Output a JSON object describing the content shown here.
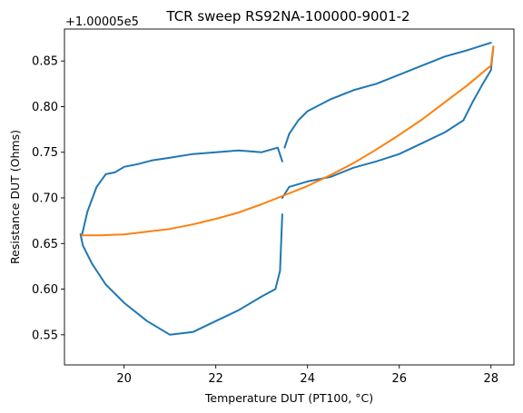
{
  "chart_data": {
    "type": "line",
    "title": "TCR sweep RS92NA-100000-9001-2",
    "xlabel": "Temperature DUT (PT100, °C)",
    "ylabel": "Resistance DUT (Ohms)",
    "y_offset_label": "+1.00005e5",
    "xlim": [
      18.7,
      28.5
    ],
    "ylim": [
      0.517,
      0.885
    ],
    "x_ticks": [
      20,
      22,
      24,
      26,
      28
    ],
    "y_ticks": [
      0.55,
      0.6,
      0.65,
      0.7,
      0.75,
      0.8,
      0.85
    ],
    "x_tick_labels": [
      "20",
      "22",
      "24",
      "26",
      "28"
    ],
    "y_tick_labels": [
      "0.55",
      "0.60",
      "0.65",
      "0.70",
      "0.75",
      "0.80",
      "0.85"
    ],
    "grid": false,
    "series": [
      {
        "color": "#1f77b4",
        "segments": [
          {
            "x": [
              19.08,
              19.2,
              19.4,
              19.6,
              19.8,
              20.0,
              20.3,
              20.6,
              21.0,
              21.5,
              22.0,
              22.5,
              23.0,
              23.35,
              23.45
            ],
            "y": [
              0.659,
              0.685,
              0.712,
              0.726,
              0.728,
              0.734,
              0.737,
              0.741,
              0.744,
              0.748,
              0.75,
              0.752,
              0.75,
              0.755,
              0.74
            ]
          },
          {
            "x": [
              23.5,
              23.6,
              23.8,
              24.0,
              24.5,
              25.0,
              25.5,
              26.0,
              26.5,
              27.0,
              27.5,
              28.0
            ],
            "y": [
              0.755,
              0.77,
              0.785,
              0.795,
              0.808,
              0.818,
              0.825,
              0.835,
              0.845,
              0.855,
              0.862,
              0.87
            ]
          },
          {
            "x": [
              28.05,
              28.0,
              27.8,
              27.6,
              27.4,
              27.0,
              26.5,
              26.0,
              25.5,
              25.0,
              24.5,
              24.0,
              23.6,
              23.45
            ],
            "y": [
              0.865,
              0.84,
              0.823,
              0.805,
              0.785,
              0.772,
              0.76,
              0.748,
              0.74,
              0.733,
              0.723,
              0.718,
              0.712,
              0.7
            ]
          },
          {
            "x": [
              23.45,
              23.4,
              23.3,
              23.0,
              22.5,
              22.0,
              21.5,
              21.0,
              20.5,
              20.0,
              19.6,
              19.3,
              19.1,
              19.05
            ],
            "y": [
              0.682,
              0.62,
              0.6,
              0.592,
              0.577,
              0.565,
              0.553,
              0.55,
              0.565,
              0.585,
              0.605,
              0.628,
              0.648,
              0.66
            ]
          }
        ]
      },
      {
        "color": "#ff7f0e",
        "curve": "quadratic-fit",
        "x": [
          19.08,
          19.5,
          20.0,
          20.5,
          21.0,
          21.5,
          22.0,
          22.5,
          23.0,
          23.5,
          24.0,
          24.5,
          25.0,
          25.5,
          26.0,
          26.5,
          27.0,
          27.5,
          28.0,
          28.05
        ],
        "y": [
          0.659,
          0.659,
          0.66,
          0.663,
          0.666,
          0.671,
          0.677,
          0.684,
          0.693,
          0.703,
          0.713,
          0.725,
          0.738,
          0.753,
          0.769,
          0.786,
          0.805,
          0.824,
          0.845,
          0.866
        ]
      }
    ]
  }
}
